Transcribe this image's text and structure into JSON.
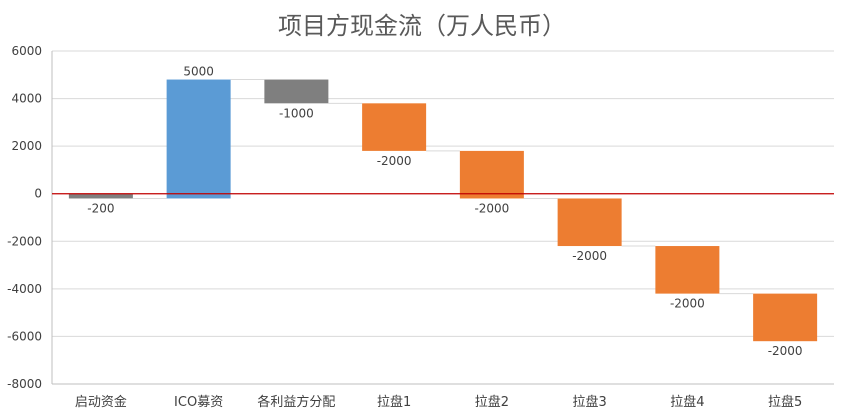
{
  "chart_data": {
    "type": "bar",
    "subtype": "waterfall",
    "title": "项目方现金流（万人民币）",
    "categories": [
      "启动资金",
      "ICO募资",
      "各利益方分配",
      "拉盘1",
      "拉盘2",
      "拉盘3",
      "拉盘4",
      "拉盘5"
    ],
    "values": [
      -200,
      5000,
      -1000,
      -2000,
      -2000,
      -2000,
      -2000,
      -2000
    ],
    "data_labels": [
      "-200",
      "5000",
      "-1000",
      "-2000",
      "-2000",
      "-2000",
      "-2000",
      "-2000"
    ],
    "bar_colors": [
      "#7f7f7f",
      "#5b9bd5",
      "#7f7f7f",
      "#ed7d31",
      "#ed7d31",
      "#ed7d31",
      "#ed7d31",
      "#ed7d31"
    ],
    "ylim": [
      -8000,
      6000
    ],
    "yticks": [
      6000,
      4000,
      2000,
      0,
      -2000,
      -4000,
      -6000,
      -8000
    ],
    "xlabel": "",
    "ylabel": "",
    "grid": true,
    "zero_line_color": "#c00000",
    "connector_color": "#d9d9d9"
  }
}
